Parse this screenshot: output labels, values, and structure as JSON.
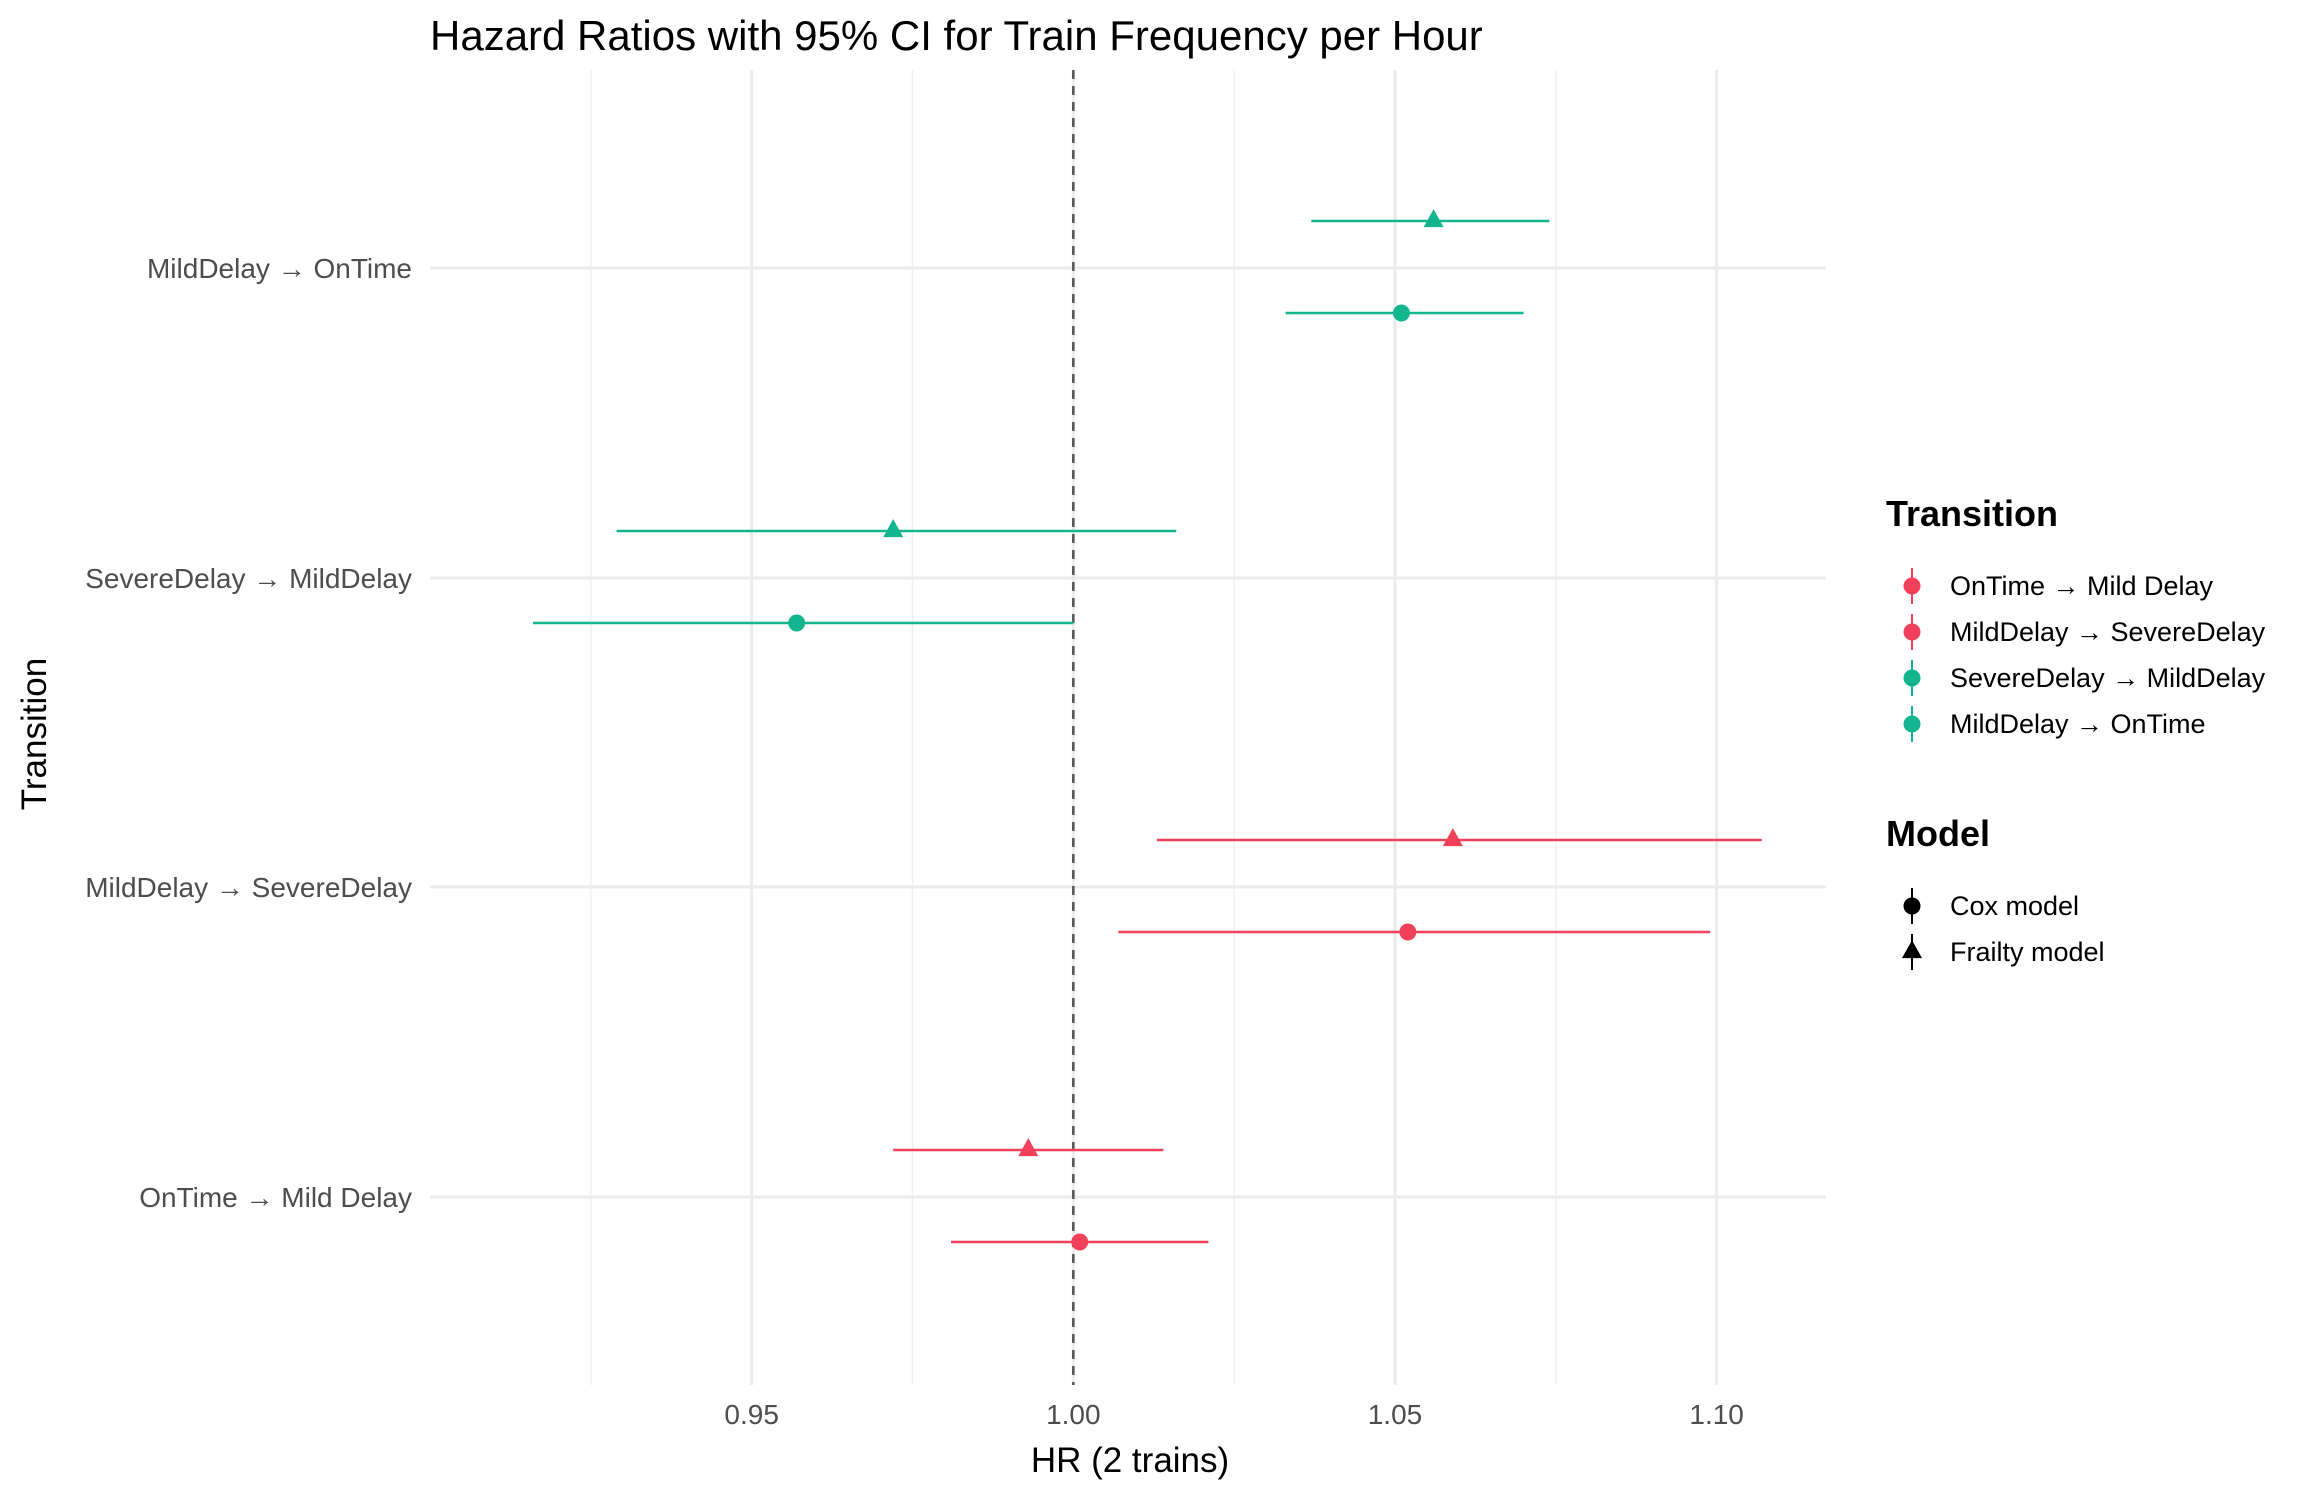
{
  "chart_data": {
    "type": "scatter",
    "subtype": "forest-plot",
    "title": "Hazard Ratios with 95% CI for Train Frequency per Hour",
    "xlabel": "HR (2 trains)",
    "ylabel": "Transition",
    "xlim": [
      0.9,
      1.117
    ],
    "x_ticks": [
      "0.95",
      "1.00",
      "1.05",
      "1.10"
    ],
    "x_tick_values": [
      0.95,
      1.0,
      1.05,
      1.1
    ],
    "reference_line": 1.0,
    "grid": true,
    "legend_position": "right",
    "categories": [
      "OnTime → Mild Delay",
      "MildDelay → SevereDelay",
      "SevereDelay → MildDelay",
      "MildDelay → OnTime"
    ],
    "colors": {
      "OnTime → Mild Delay": "#F0405A",
      "MildDelay → SevereDelay": "#F0405A",
      "SevereDelay → MildDelay": "#12B58E",
      "MildDelay → OnTime": "#12B58E"
    },
    "series": [
      {
        "name": "Cox model",
        "shape": "circle",
        "points": [
          {
            "category": "OnTime → Mild Delay",
            "hr": 1.001,
            "lower": 0.981,
            "upper": 1.021
          },
          {
            "category": "MildDelay → SevereDelay",
            "hr": 1.052,
            "lower": 1.007,
            "upper": 1.099
          },
          {
            "category": "SevereDelay → MildDelay",
            "hr": 0.957,
            "lower": 0.916,
            "upper": 1.0
          },
          {
            "category": "MildDelay → OnTime",
            "hr": 1.051,
            "lower": 1.033,
            "upper": 1.07
          }
        ]
      },
      {
        "name": "Frailty model",
        "shape": "triangle",
        "points": [
          {
            "category": "OnTime → Mild Delay",
            "hr": 0.993,
            "lower": 0.972,
            "upper": 1.014
          },
          {
            "category": "MildDelay → SevereDelay",
            "hr": 1.059,
            "lower": 1.013,
            "upper": 1.107
          },
          {
            "category": "SevereDelay → MildDelay",
            "hr": 0.972,
            "lower": 0.929,
            "upper": 1.016
          },
          {
            "category": "MildDelay → OnTime",
            "hr": 1.056,
            "lower": 1.037,
            "upper": 1.074
          }
        ]
      }
    ],
    "legend": {
      "transition_title": "Transition",
      "transition_items": [
        "OnTime → Mild Delay",
        "MildDelay → SevereDelay",
        "SevereDelay → MildDelay",
        "MildDelay → OnTime"
      ],
      "model_title": "Model",
      "model_items": [
        "Cox model",
        "Frailty model"
      ]
    }
  }
}
